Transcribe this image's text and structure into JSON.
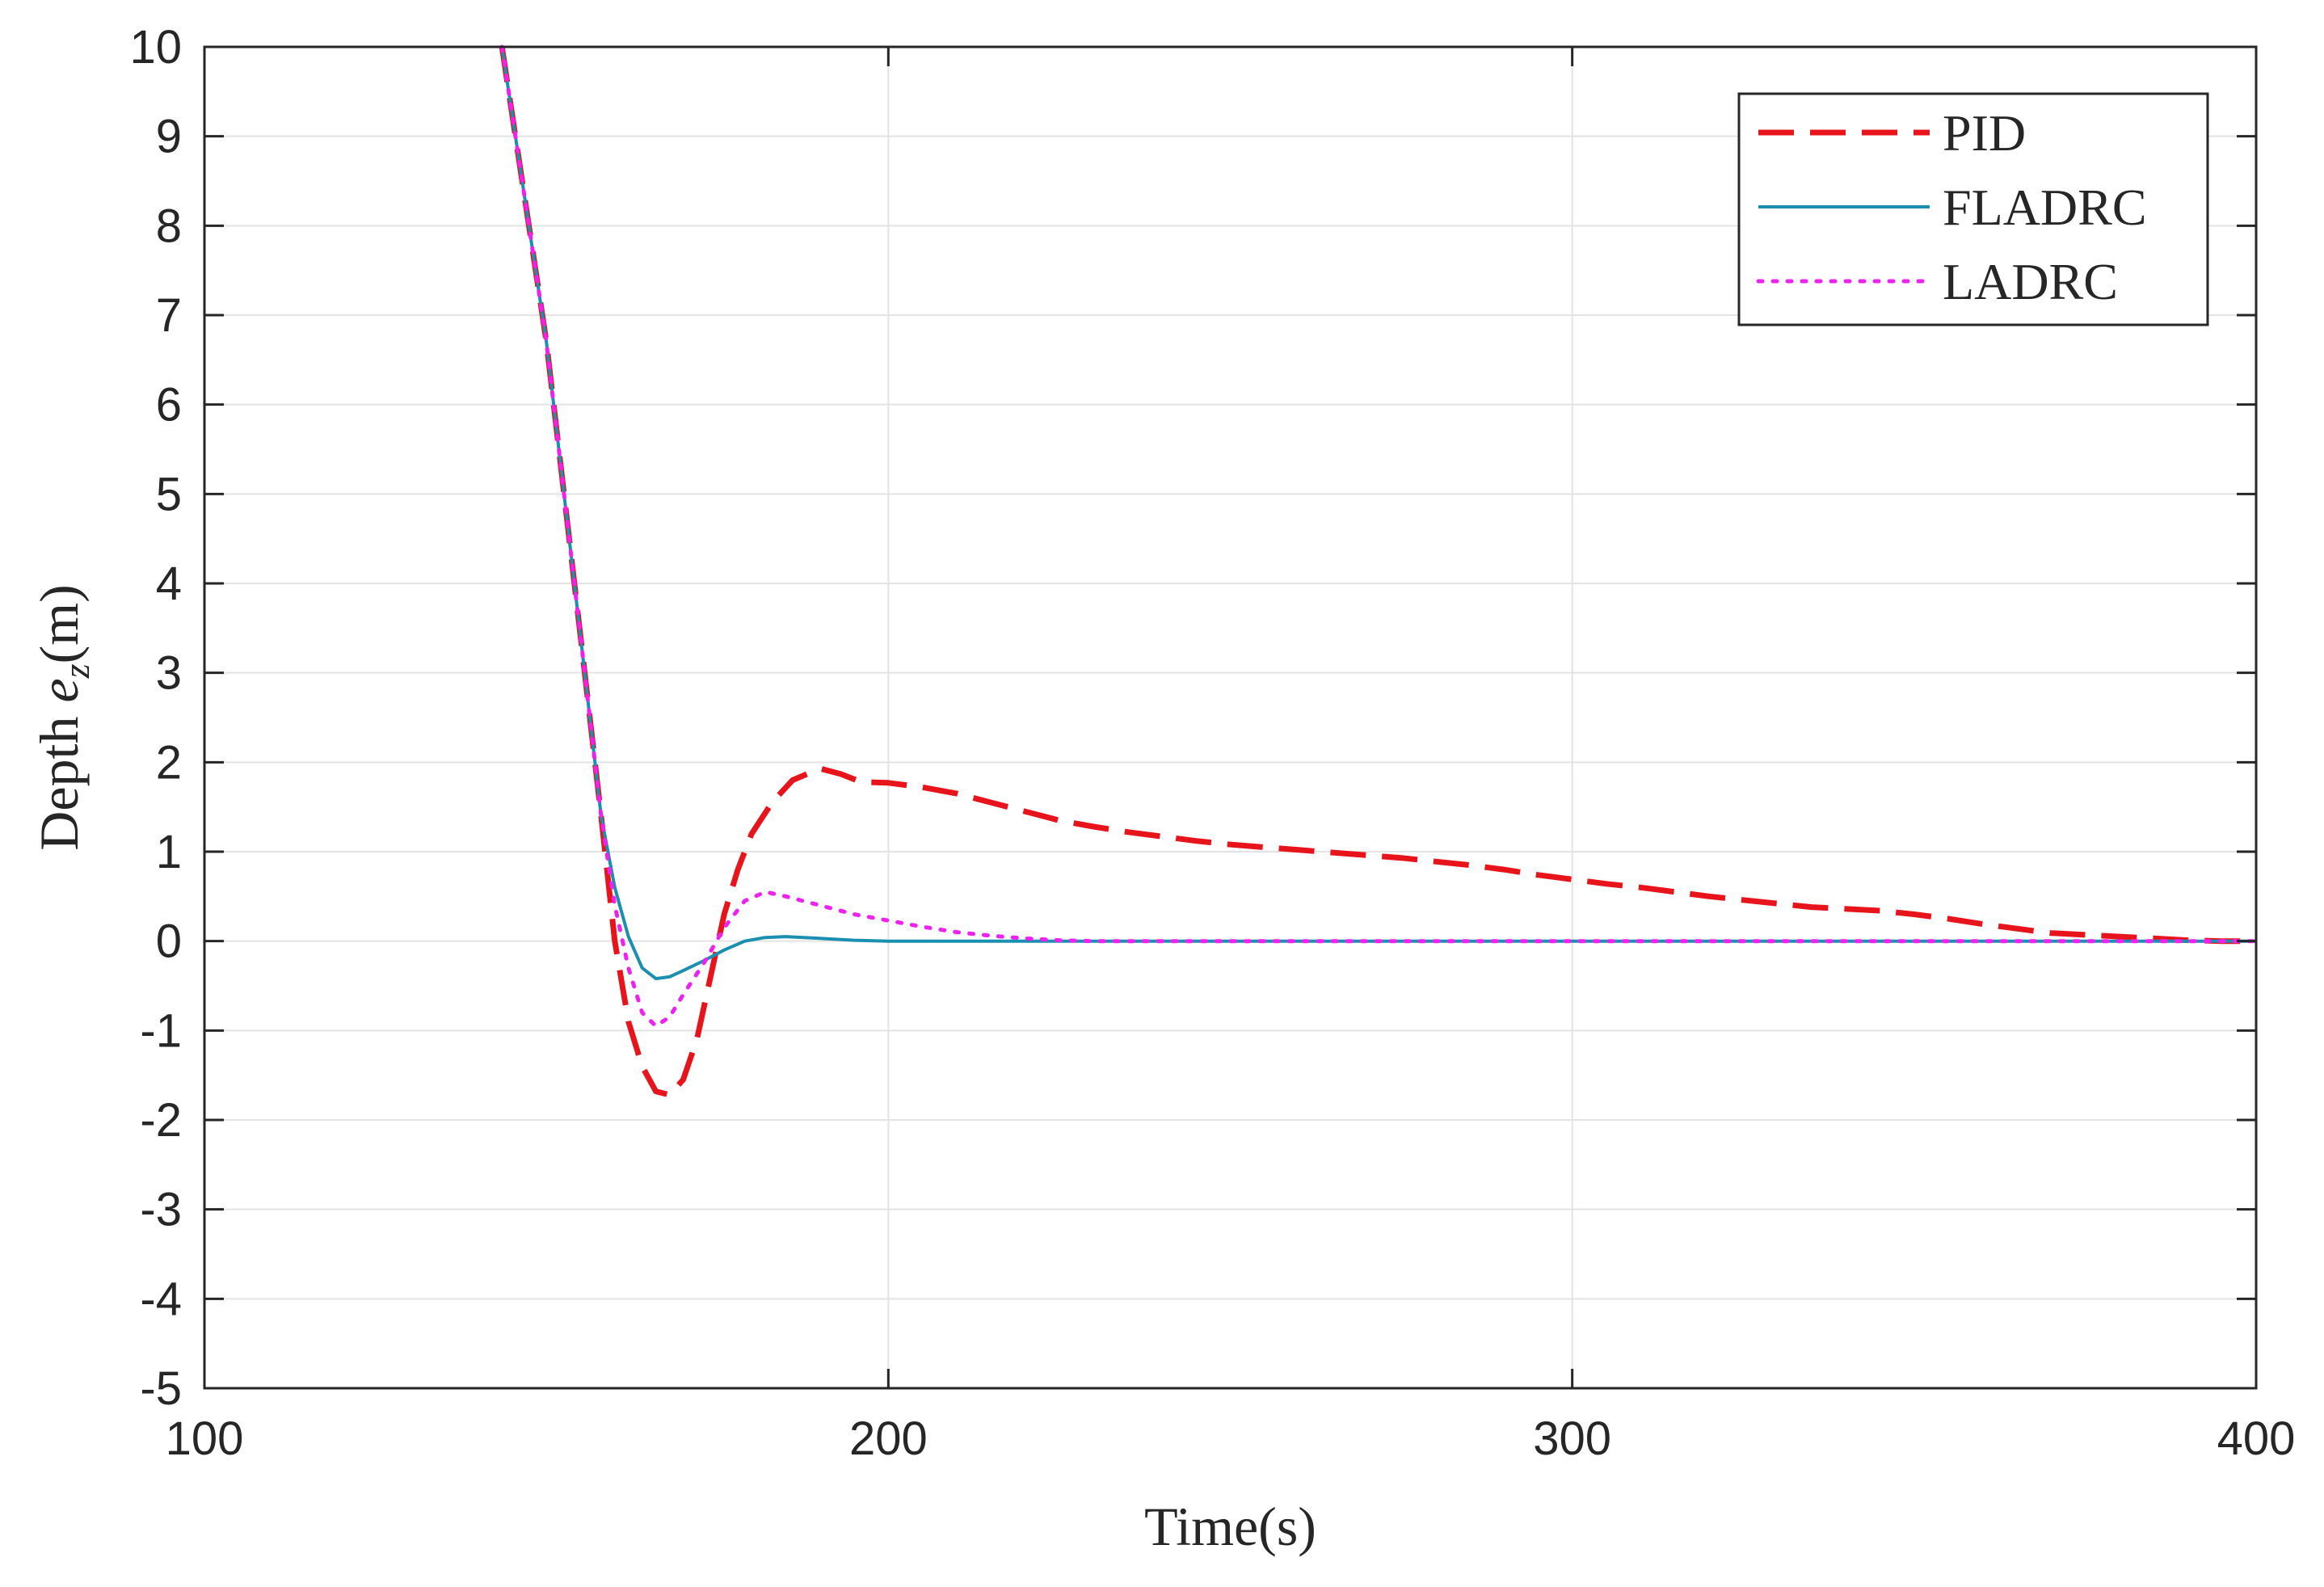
{
  "chart_data": {
    "type": "line",
    "xlabel": "Time(s)",
    "ylabel_prefix": "Depth ",
    "ylabel_var": "e",
    "ylabel_sub": "z",
    "ylabel_suffix": "(m)",
    "xlim": [
      100,
      400
    ],
    "ylim": [
      -5,
      10
    ],
    "xticks": [
      100,
      200,
      300,
      400
    ],
    "yticks": [
      -5,
      -4,
      -3,
      -2,
      -1,
      0,
      1,
      2,
      3,
      4,
      5,
      6,
      7,
      8,
      9,
      10
    ],
    "grid": true,
    "legend_position": "top-right",
    "series": [
      {
        "name": "PID",
        "color": "#e8141c",
        "style": "dashed",
        "points": [
          [
            143.5,
            10
          ],
          [
            150,
            6.7
          ],
          [
            155,
            3.4
          ],
          [
            158,
            1.4
          ],
          [
            160,
            0
          ],
          [
            162,
            -0.9
          ],
          [
            164,
            -1.4
          ],
          [
            166,
            -1.68
          ],
          [
            168,
            -1.72
          ],
          [
            170,
            -1.55
          ],
          [
            172,
            -1.1
          ],
          [
            174,
            -0.4
          ],
          [
            176,
            0.3
          ],
          [
            178,
            0.8
          ],
          [
            180,
            1.2
          ],
          [
            183,
            1.55
          ],
          [
            186,
            1.8
          ],
          [
            190,
            1.93
          ],
          [
            193,
            1.87
          ],
          [
            196,
            1.78
          ],
          [
            200,
            1.77
          ],
          [
            205,
            1.72
          ],
          [
            210,
            1.65
          ],
          [
            215,
            1.55
          ],
          [
            220,
            1.45
          ],
          [
            225,
            1.35
          ],
          [
            230,
            1.28
          ],
          [
            235,
            1.22
          ],
          [
            240,
            1.17
          ],
          [
            245,
            1.12
          ],
          [
            250,
            1.08
          ],
          [
            255,
            1.05
          ],
          [
            260,
            1.02
          ],
          [
            265,
            0.99
          ],
          [
            270,
            0.96
          ],
          [
            275,
            0.93
          ],
          [
            280,
            0.89
          ],
          [
            285,
            0.85
          ],
          [
            290,
            0.8
          ],
          [
            295,
            0.74
          ],
          [
            300,
            0.69
          ],
          [
            305,
            0.64
          ],
          [
            310,
            0.6
          ],
          [
            315,
            0.55
          ],
          [
            320,
            0.5
          ],
          [
            325,
            0.46
          ],
          [
            330,
            0.42
          ],
          [
            335,
            0.38
          ],
          [
            340,
            0.36
          ],
          [
            345,
            0.34
          ],
          [
            350,
            0.3
          ],
          [
            355,
            0.25
          ],
          [
            360,
            0.19
          ],
          [
            365,
            0.14
          ],
          [
            370,
            0.09
          ],
          [
            375,
            0.07
          ],
          [
            380,
            0.05
          ],
          [
            385,
            0.03
          ],
          [
            390,
            0.01
          ],
          [
            395,
            0
          ],
          [
            400,
            0
          ]
        ]
      },
      {
        "name": "FLADRC",
        "color": "#1a8fb0",
        "style": "solid",
        "points": [
          [
            143.5,
            10
          ],
          [
            150,
            6.7
          ],
          [
            155,
            3.4
          ],
          [
            158,
            1.4
          ],
          [
            160,
            0.6
          ],
          [
            162,
            0.05
          ],
          [
            164,
            -0.3
          ],
          [
            166,
            -0.42
          ],
          [
            168,
            -0.4
          ],
          [
            170,
            -0.33
          ],
          [
            173,
            -0.22
          ],
          [
            176,
            -0.1
          ],
          [
            179,
            0
          ],
          [
            182,
            0.04
          ],
          [
            185,
            0.05
          ],
          [
            190,
            0.03
          ],
          [
            195,
            0.01
          ],
          [
            200,
            0
          ],
          [
            210,
            0
          ],
          [
            400,
            0
          ]
        ]
      },
      {
        "name": "LADRC",
        "color": "#ee22ee",
        "style": "dotted",
        "points": [
          [
            143.5,
            10
          ],
          [
            150,
            6.7
          ],
          [
            155,
            3.4
          ],
          [
            158,
            1.4
          ],
          [
            160,
            0.4
          ],
          [
            162,
            -0.3
          ],
          [
            164,
            -0.8
          ],
          [
            166,
            -0.95
          ],
          [
            168,
            -0.85
          ],
          [
            170,
            -0.6
          ],
          [
            173,
            -0.25
          ],
          [
            176,
            0.15
          ],
          [
            179,
            0.45
          ],
          [
            182,
            0.55
          ],
          [
            185,
            0.5
          ],
          [
            190,
            0.4
          ],
          [
            195,
            0.3
          ],
          [
            200,
            0.23
          ],
          [
            205,
            0.16
          ],
          [
            210,
            0.1
          ],
          [
            215,
            0.06
          ],
          [
            220,
            0.03
          ],
          [
            225,
            0.01
          ],
          [
            230,
            0
          ],
          [
            400,
            0
          ]
        ]
      }
    ]
  }
}
